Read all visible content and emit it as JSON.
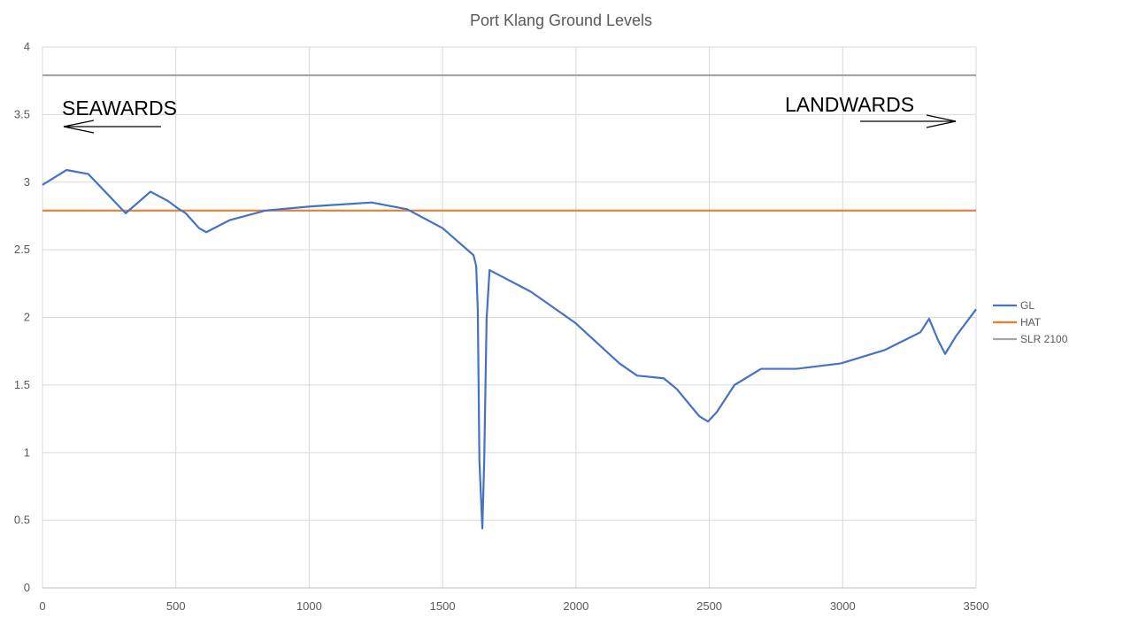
{
  "chart_data": {
    "type": "line",
    "title": "Port Klang Ground Levels",
    "xlabel": "",
    "ylabel": "",
    "xlim": [
      0,
      3500
    ],
    "ylim": [
      0,
      4
    ],
    "x_ticks": [
      0,
      500,
      1000,
      1500,
      2000,
      2500,
      3000,
      3500
    ],
    "y_ticks": [
      "0",
      "0.5",
      "1",
      "1.5",
      "2",
      "2.5",
      "3",
      "3.5",
      "4"
    ],
    "grid": true,
    "legend_position": "right",
    "annotations": [
      {
        "text": "SEAWARDS",
        "arrow": "left"
      },
      {
        "text": "LANDWARDS",
        "arrow": "right"
      }
    ],
    "series": [
      {
        "name": "GL",
        "color": "#4472C4",
        "x": [
          0,
          90,
          172,
          312,
          405,
          471,
          505,
          537,
          587,
          614,
          703,
          836,
          1002,
          1234,
          1367,
          1500,
          1616,
          1626,
          1632,
          1638,
          1649,
          1656,
          1665,
          1676,
          1831,
          1997,
          2163,
          2229,
          2329,
          2378,
          2462,
          2495,
          2528,
          2594,
          2694,
          2827,
          2993,
          3159,
          3291,
          3324,
          3358,
          3384,
          3424,
          3500
        ],
        "y": [
          2.98,
          3.09,
          3.06,
          2.77,
          2.93,
          2.86,
          2.81,
          2.77,
          2.66,
          2.63,
          2.72,
          2.79,
          2.82,
          2.85,
          2.8,
          2.66,
          2.46,
          2.38,
          2.05,
          0.94,
          0.44,
          0.94,
          1.99,
          2.35,
          2.19,
          1.96,
          1.66,
          1.57,
          1.55,
          1.47,
          1.27,
          1.23,
          1.3,
          1.5,
          1.62,
          1.62,
          1.66,
          1.76,
          1.89,
          1.99,
          1.83,
          1.73,
          1.86,
          2.06
        ]
      },
      {
        "name": "HAT",
        "color": "#ED7D31",
        "x": [
          0,
          3500
        ],
        "y": [
          2.79,
          2.79
        ]
      },
      {
        "name": "SLR 2100",
        "color": "#A5A5A5",
        "x": [
          0,
          3500
        ],
        "y": [
          3.79,
          3.79
        ]
      }
    ]
  }
}
